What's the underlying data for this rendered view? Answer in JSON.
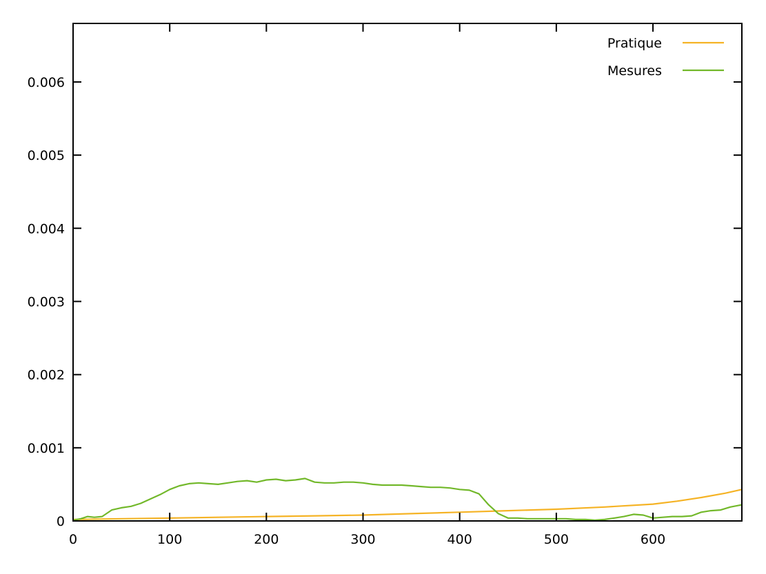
{
  "chart_data": {
    "type": "line",
    "title": "",
    "xlabel": "",
    "ylabel": "",
    "xlim": [
      0,
      692
    ],
    "ylim": [
      0,
      0.0068
    ],
    "x_ticks": [
      0,
      100,
      200,
      300,
      400,
      500,
      600
    ],
    "y_ticks": [
      0,
      0.001,
      0.002,
      0.003,
      0.004,
      0.005,
      0.006
    ],
    "x_tick_labels": [
      "0",
      "100",
      "200",
      "300",
      "400",
      "500",
      "600"
    ],
    "y_tick_labels": [
      "0",
      "0.001",
      "0.002",
      "0.003",
      "0.004",
      "0.005",
      "0.006"
    ],
    "grid": false,
    "legend_position": "top-right",
    "series": [
      {
        "name": "Pratique",
        "color": "#f5b325",
        "x": [
          0,
          50,
          100,
          150,
          200,
          250,
          300,
          350,
          400,
          450,
          500,
          550,
          600,
          625,
          650,
          675,
          692
        ],
        "y": [
          2e-05,
          3e-05,
          4e-05,
          5e-05,
          6e-05,
          7e-05,
          8e-05,
          0.0001,
          0.00012,
          0.00014,
          0.00016,
          0.00019,
          0.00023,
          0.00027,
          0.00032,
          0.00038,
          0.00043
        ]
      },
      {
        "name": "Mesures",
        "color": "#72b82a",
        "x": [
          0,
          8,
          15,
          22,
          30,
          40,
          50,
          60,
          70,
          80,
          90,
          100,
          110,
          120,
          130,
          140,
          150,
          160,
          170,
          180,
          190,
          200,
          210,
          220,
          230,
          240,
          250,
          260,
          270,
          280,
          290,
          300,
          310,
          320,
          330,
          340,
          350,
          360,
          370,
          380,
          390,
          400,
          410,
          420,
          430,
          440,
          450,
          460,
          470,
          480,
          490,
          500,
          510,
          520,
          530,
          540,
          550,
          560,
          570,
          580,
          590,
          600,
          610,
          620,
          630,
          640,
          650,
          660,
          670,
          680,
          692
        ],
        "y": [
          1e-05,
          3e-05,
          6e-05,
          5e-05,
          6e-05,
          0.00015,
          0.00018,
          0.0002,
          0.00024,
          0.0003,
          0.00036,
          0.00043,
          0.00048,
          0.00051,
          0.00052,
          0.00051,
          0.0005,
          0.00052,
          0.00054,
          0.00055,
          0.00053,
          0.00056,
          0.00057,
          0.00055,
          0.00056,
          0.00058,
          0.00053,
          0.00052,
          0.00052,
          0.00053,
          0.00053,
          0.00052,
          0.0005,
          0.00049,
          0.00049,
          0.00049,
          0.00048,
          0.00047,
          0.00046,
          0.00046,
          0.00045,
          0.00043,
          0.00042,
          0.00037,
          0.00022,
          0.0001,
          4e-05,
          4e-05,
          3e-05,
          3e-05,
          3e-05,
          3e-05,
          3e-05,
          2e-05,
          2e-05,
          1e-05,
          2e-05,
          4e-05,
          6e-05,
          9e-05,
          8e-05,
          4e-05,
          5e-05,
          6e-05,
          6e-05,
          7e-05,
          0.00012,
          0.00014,
          0.00015,
          0.00019,
          0.00022
        ]
      }
    ]
  }
}
